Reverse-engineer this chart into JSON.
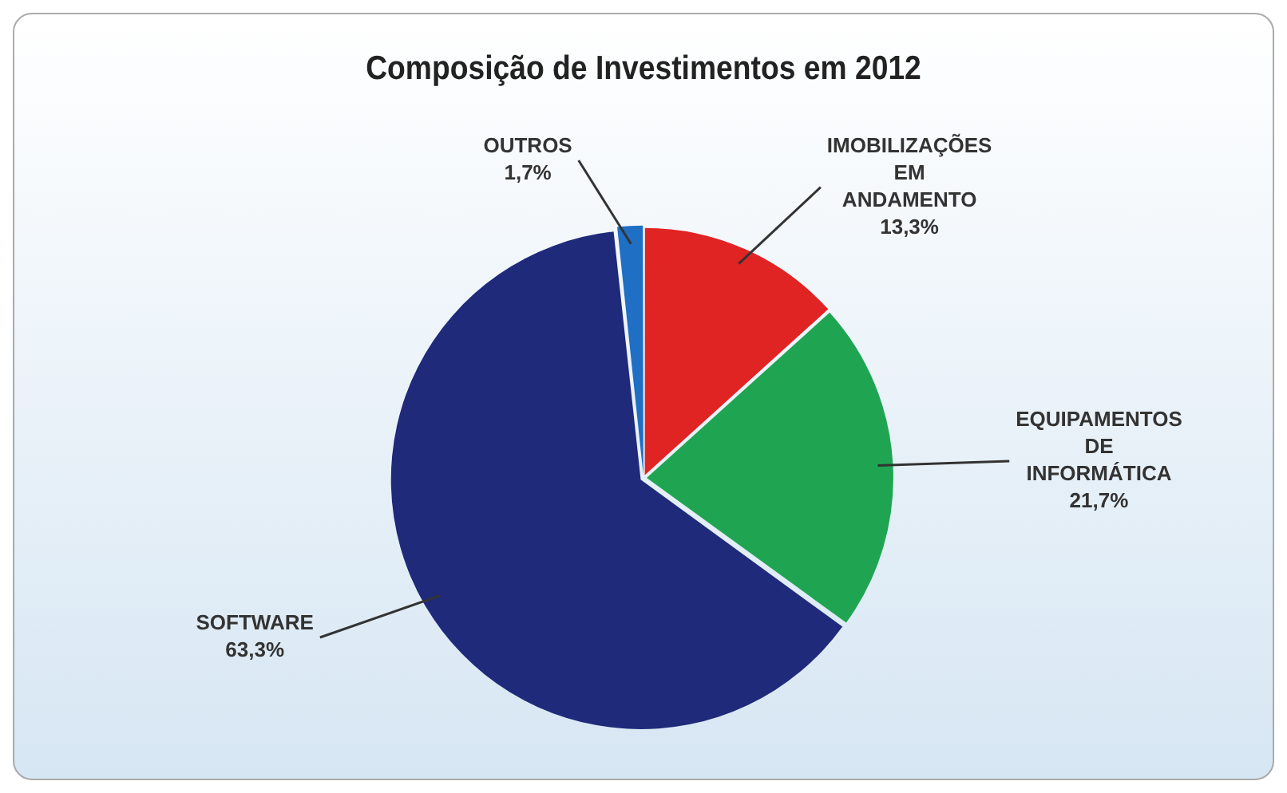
{
  "chart_data": {
    "type": "pie",
    "title": "Composição de Investimentos em 2012",
    "categories": [
      "IMOBILIZAÇÕES EM ANDAMENTO",
      "EQUIPAMENTOS DE INFORMÁTICA",
      "SOFTWARE",
      "OUTROS"
    ],
    "values": [
      13.3,
      21.7,
      63.3,
      1.7
    ],
    "colors": [
      "#e02424",
      "#1fa552",
      "#1f2a7a",
      "#1f6fc4"
    ],
    "value_labels": [
      "13,3%",
      "21,7%",
      "63,3%",
      "1,7%"
    ],
    "legend": false
  }
}
